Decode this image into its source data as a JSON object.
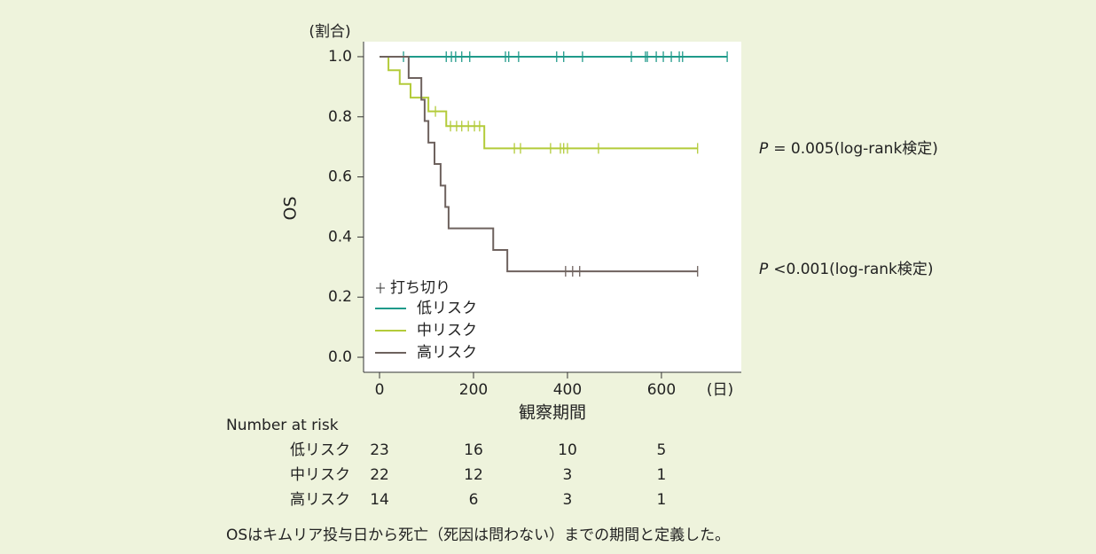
{
  "chart_data": {
    "type": "km",
    "y_unit": "(割合)",
    "x_unit": "(日)",
    "xlabel": "観察期間",
    "ylabel": "OS",
    "xlim": [
      -34,
      770
    ],
    "ylim": [
      -0.05,
      1.05
    ],
    "xticks": [
      0,
      200,
      400,
      600
    ],
    "yticks": [
      {
        "value": 0,
        "label": "0.0"
      },
      0.2,
      0.4,
      0.6,
      0.8,
      {
        "value": 1,
        "label": "1.0"
      }
    ],
    "censor_legend": "打ち切り",
    "series": [
      {
        "name": "低リスク",
        "color": "#1f9a8a",
        "x": [
          0,
          740
        ],
        "values": [
          1,
          1
        ],
        "censor_x": [
          51,
          142,
          153,
          162,
          175,
          192,
          268,
          275,
          296,
          377,
          392,
          432,
          536,
          566,
          570,
          589,
          604,
          621,
          638,
          645,
          740
        ],
        "censor_values": [
          1,
          1,
          1,
          1,
          1,
          1,
          1,
          1,
          1,
          1,
          1,
          1,
          1,
          1,
          1,
          1,
          1,
          1,
          1,
          1,
          1
        ]
      },
      {
        "name": "中リスク",
        "color": "#b3cb3a",
        "x": [
          0,
          19,
          43,
          66,
          104,
          142,
          223,
          677
        ],
        "values": [
          1,
          0.955,
          0.909,
          0.864,
          0.818,
          0.769,
          0.695,
          0.695
        ],
        "censor_x": [
          119,
          151,
          164,
          175,
          189,
          202,
          213,
          287,
          300,
          364,
          385,
          392,
          400,
          466,
          677
        ],
        "censor_values": [
          0.818,
          0.769,
          0.769,
          0.769,
          0.769,
          0.769,
          0.769,
          0.695,
          0.695,
          0.695,
          0.695,
          0.695,
          0.695,
          0.695,
          0.695
        ]
      },
      {
        "name": "高リスク",
        "color": "#6e625e",
        "x": [
          0,
          62,
          89,
          96,
          104,
          117,
          130,
          140,
          147,
          242,
          272,
          677
        ],
        "values": [
          1,
          0.929,
          0.857,
          0.786,
          0.714,
          0.643,
          0.571,
          0.5,
          0.429,
          0.357,
          0.286,
          0.286
        ],
        "censor_x": [
          396,
          411,
          426,
          677
        ],
        "censor_values": [
          0.286,
          0.286,
          0.286,
          0.286
        ]
      }
    ],
    "annotations": [
      {
        "prefix": "P",
        "text": "= 0.005(log-rank検定)"
      },
      {
        "prefix": "P",
        "text": "<0.001(log-rank検定)"
      }
    ],
    "risk_table": {
      "title": "Number at risk",
      "rows": [
        {
          "name": "低リスク",
          "values": [
            23,
            16,
            10,
            5
          ]
        },
        {
          "name": "中リスク",
          "values": [
            22,
            12,
            3,
            1
          ]
        },
        {
          "name": "高リスク",
          "values": [
            14,
            6,
            3,
            1
          ]
        }
      ]
    },
    "footnote": "OSはキムリア投与日から死亡（死因は問わない）までの期間と定義した。"
  }
}
